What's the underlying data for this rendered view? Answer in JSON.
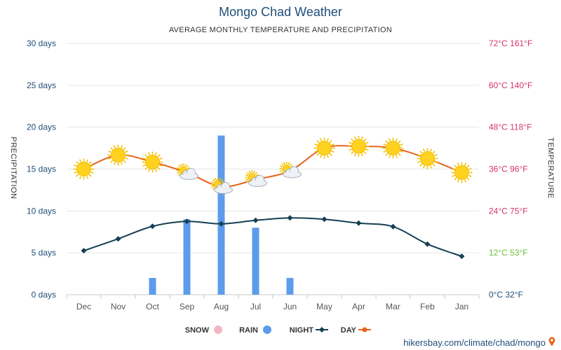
{
  "chart_data": {
    "type": "line+bar",
    "title": "Mongo Chad Weather",
    "subtitle": "AVERAGE MONTHLY TEMPERATURE AND PRECIPITATION",
    "left_axis_title": "PRECIPITATION",
    "right_axis_title": "TEMPERATURE",
    "categories": [
      "Jan",
      "Feb",
      "Mar",
      "Apr",
      "May",
      "Jun",
      "Jul",
      "Aug",
      "Sep",
      "Oct",
      "Nov",
      "Dec"
    ],
    "left_ticks": [
      {
        "value": 0,
        "label": "0 days"
      },
      {
        "value": 5,
        "label": "5 days"
      },
      {
        "value": 10,
        "label": "10 days"
      },
      {
        "value": 15,
        "label": "15 days"
      },
      {
        "value": 20,
        "label": "20 days"
      },
      {
        "value": 25,
        "label": "25 days"
      },
      {
        "value": 30,
        "label": "30 days"
      }
    ],
    "right_ticks": [
      {
        "value": 0,
        "label": "0°C 32°F"
      },
      {
        "value": 12,
        "label": "12°C 53°F"
      },
      {
        "value": 24,
        "label": "24°C 75°F"
      },
      {
        "value": 36,
        "label": "36°C 96°F"
      },
      {
        "value": 48,
        "label": "48°C 118°F"
      },
      {
        "value": 60,
        "label": "60°C 140°F"
      },
      {
        "value": 72,
        "label": "72°C 161°F"
      }
    ],
    "left_range": [
      0,
      30
    ],
    "right_range": [
      0,
      72
    ],
    "series": [
      {
        "name": "DAY",
        "type": "line",
        "axis": "right",
        "color": "#e8641a",
        "values": [
          35,
          39,
          42,
          42.5,
          42,
          35.5,
          33,
          31,
          35,
          38,
          40,
          36
        ]
      },
      {
        "name": "NIGHT",
        "type": "line",
        "axis": "right",
        "color": "#153f52",
        "values": [
          11,
          14.5,
          19.5,
          20.5,
          21.6,
          22,
          21.3,
          20.3,
          21,
          19.6,
          16,
          12.6
        ]
      },
      {
        "name": "RAIN",
        "type": "bar",
        "axis": "left",
        "color": "#5d9cec",
        "values": [
          0,
          0,
          0,
          0,
          0,
          2,
          8,
          19,
          9,
          2,
          0,
          0
        ]
      },
      {
        "name": "SNOW",
        "type": "bar",
        "axis": "left",
        "color": "#f4b6c2",
        "values": [
          0,
          0,
          0,
          0,
          0,
          0,
          0,
          0,
          0,
          0,
          0,
          0
        ]
      }
    ],
    "weather_icons": [
      "sun",
      "sun",
      "sun",
      "sun",
      "sun",
      "sun-cloud",
      "sun-cloud",
      "sun-cloud-rain",
      "sun-cloud",
      "sun",
      "sun",
      "sun"
    ],
    "legend": [
      "SNOW",
      "RAIN",
      "NIGHT",
      "DAY"
    ],
    "legend_position": "bottom",
    "grid": true,
    "colors": {
      "left_labels": "#1f4e79",
      "right_labels": "#d6336c",
      "right_label_12": "#6cbf3b",
      "right_label_0": "#1f4e79"
    }
  },
  "source": "hikersbay.com/climate/chad/mongo"
}
